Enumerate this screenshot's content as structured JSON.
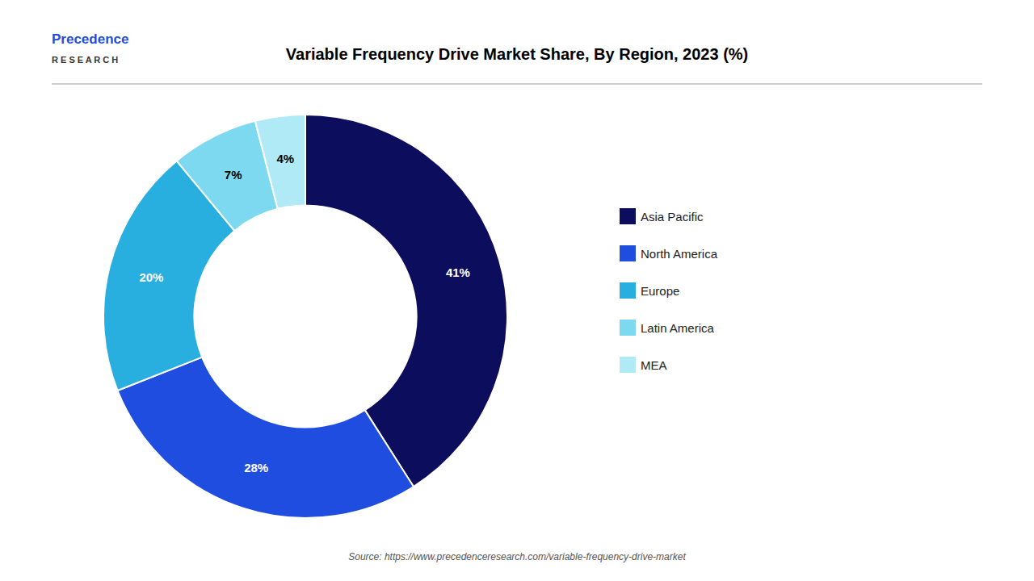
{
  "chart_data": {
    "type": "donut",
    "title": "Variable Frequency Drive Market Share, By Region, 2023 (%)",
    "categories": [
      "Asia Pacific",
      "North America",
      "Europe",
      "Latin America",
      "MEA"
    ],
    "values": [
      41,
      28,
      20,
      7,
      4
    ],
    "value_labels": [
      "41%",
      "28%",
      "20%",
      "7%",
      "4%"
    ],
    "colors": [
      "#0d0d5e",
      "#1f4de0",
      "#29aee0",
      "#7dd9f0",
      "#b0eaf7"
    ],
    "data_labels": true,
    "legend": "right",
    "annotations": [
      "Precedence",
      "R E S E A R C H",
      "Source: https://www.precedenceresearch.com/variable-frequency-drive-market"
    ]
  }
}
